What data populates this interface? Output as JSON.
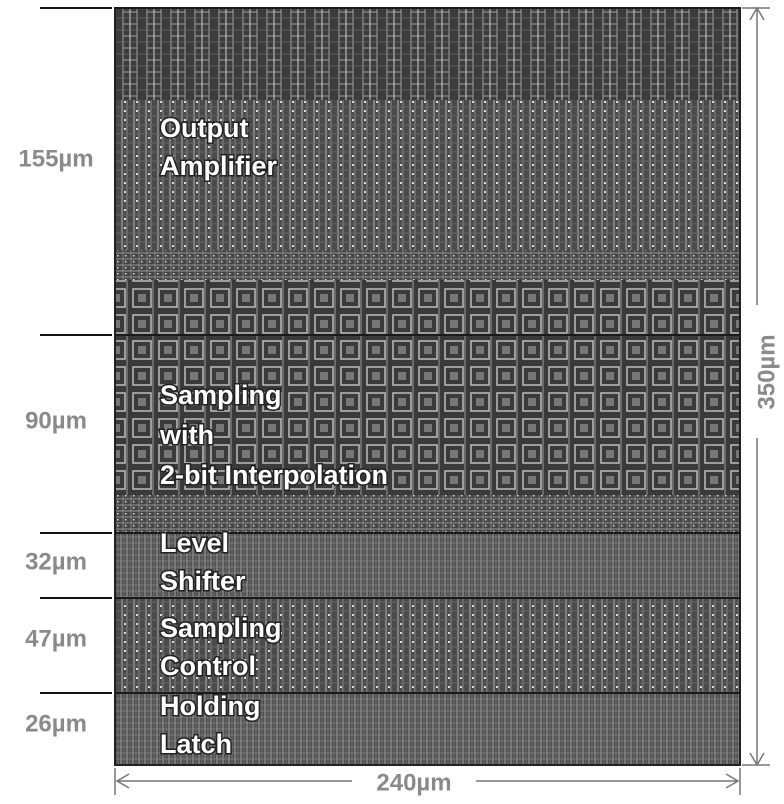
{
  "sections": [
    {
      "height": "155µm",
      "label": [
        "Output",
        "Amplifier"
      ]
    },
    {
      "height": "90µm",
      "label": [
        "Sampling",
        "with",
        "2-bit Interpolation"
      ]
    },
    {
      "height": "32µm",
      "label": [
        "Level",
        "Shifter"
      ]
    },
    {
      "height": "47µm",
      "label": [
        "Sampling",
        "Control"
      ]
    },
    {
      "height": "26µm",
      "label": [
        "Holding",
        "Latch"
      ]
    }
  ],
  "width": "240µm",
  "total_height": "350µm"
}
